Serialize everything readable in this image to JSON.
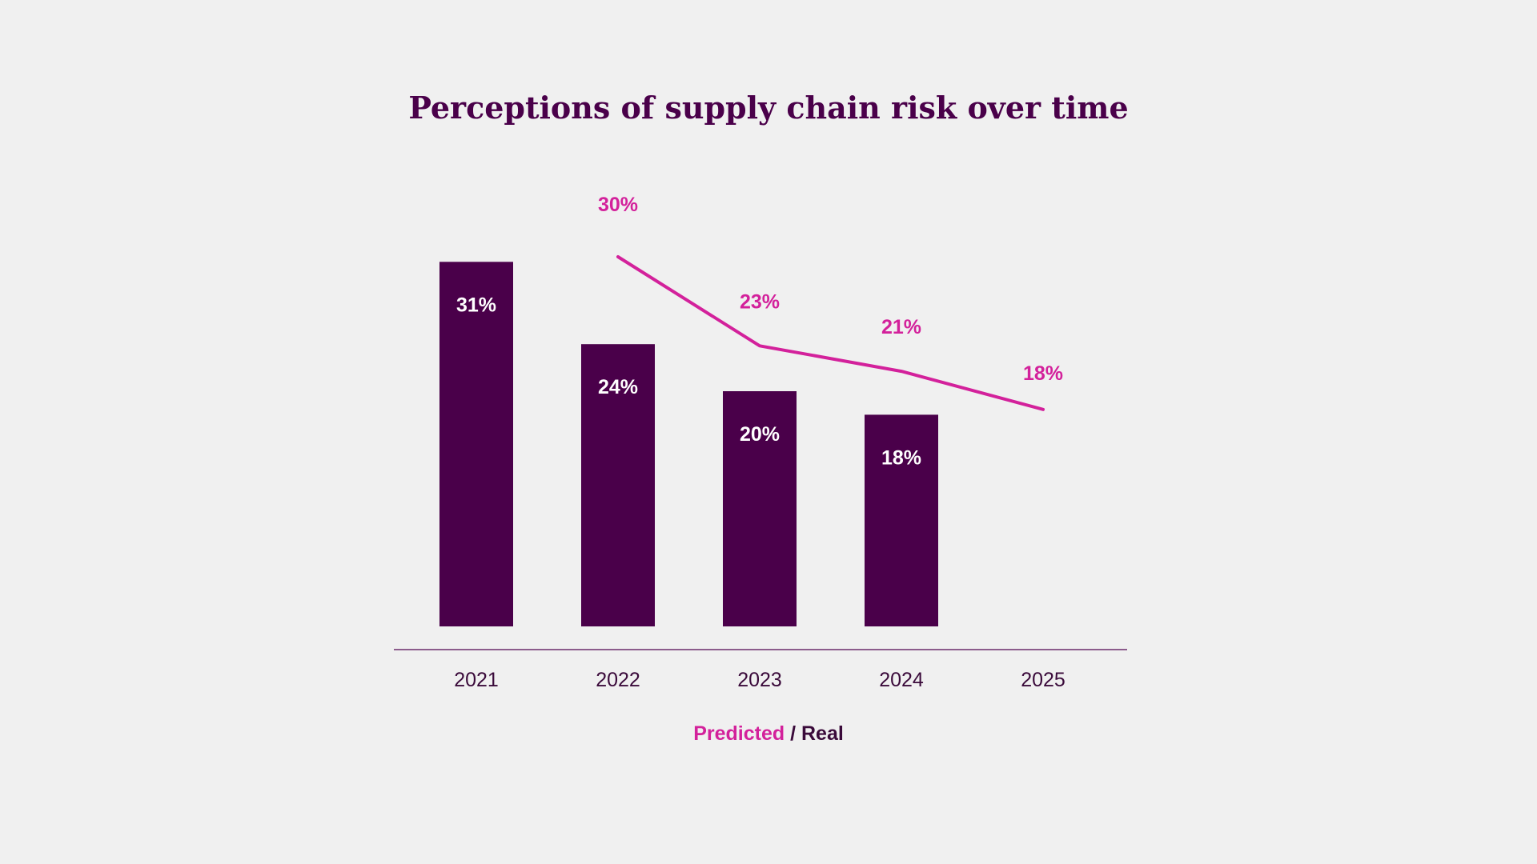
{
  "chart_data": {
    "type": "bar",
    "title": "Perceptions of supply chain risk over time",
    "categories": [
      "2021",
      "2022",
      "2023",
      "2024",
      "2025"
    ],
    "series": [
      {
        "name": "Real",
        "kind": "bar",
        "values": [
          31,
          24,
          20,
          18,
          null
        ],
        "labels": [
          "31%",
          "24%",
          "20%",
          "18%",
          null
        ]
      },
      {
        "name": "Predicted",
        "kind": "line",
        "values": [
          null,
          30,
          23,
          21,
          18
        ],
        "labels": [
          null,
          "30%",
          "23%",
          "21%",
          "18%"
        ]
      }
    ],
    "ylim": [
      0,
      31
    ],
    "xlabel": "",
    "ylabel": "",
    "grid": false,
    "legend": {
      "predicted": "Predicted",
      "separator": " / ",
      "real": "Real",
      "position": "bottom-center"
    },
    "colors": {
      "real": "#4a004a",
      "predicted": "#d3219b",
      "axis": "#6a2a6a"
    }
  }
}
